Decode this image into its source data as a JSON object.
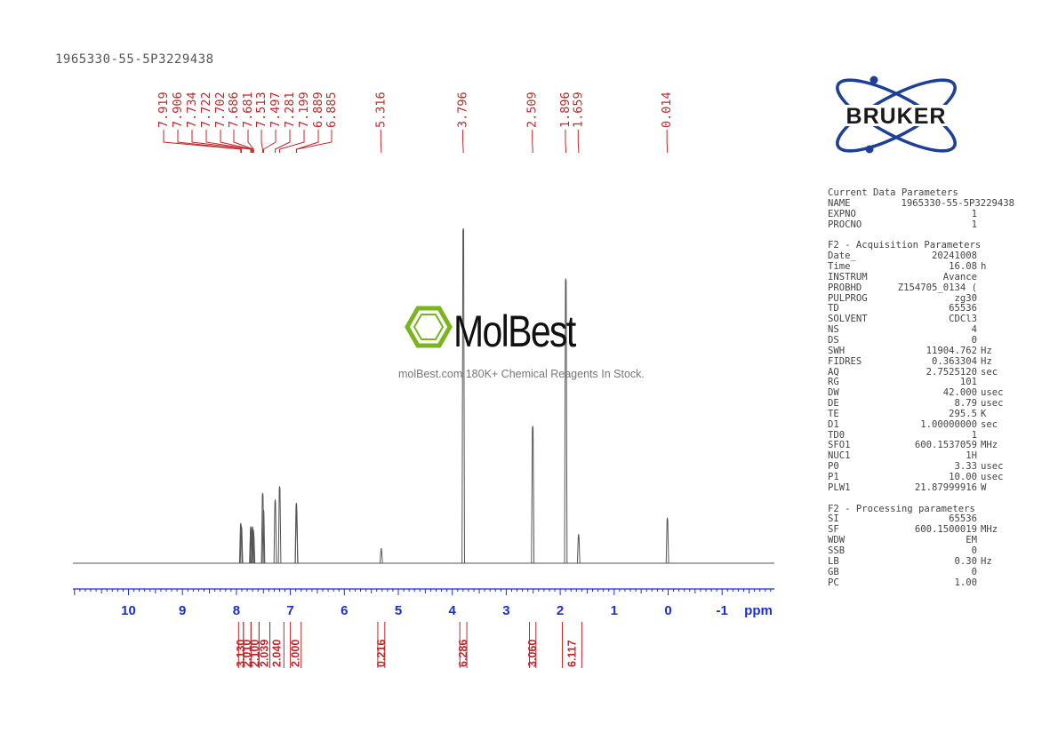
{
  "sample_id": "1965330-55-5P3229438",
  "watermark": {
    "brand": "MolBest",
    "tagline": "molBest.com,180K+ Chemical Reagents In Stock."
  },
  "logo": {
    "text": "BRUKER",
    "color": "#1e3f96"
  },
  "colors": {
    "peak_labels": "#c0272d",
    "axis": "#1a2fd0",
    "spectrum": "#555555",
    "brand_green": "#7ab51d"
  },
  "chart_data": {
    "type": "line",
    "title": "",
    "xlabel": "ppm",
    "ylabel": "",
    "xlim": [
      12.0,
      -2.0
    ],
    "x_direction": "reversed",
    "x_ticks": [
      10,
      9,
      8,
      7,
      6,
      5,
      4,
      3,
      2,
      1,
      0,
      -1
    ],
    "x_tick_labels": [
      "10",
      "9",
      "8",
      "7",
      "6",
      "5",
      "4",
      "3",
      "2",
      "1",
      "0",
      "-1"
    ],
    "peak_labels": [
      "7.919",
      "7.906",
      "7.734",
      "7.722",
      "7.702",
      "7.686",
      "7.681",
      "7.513",
      "7.497",
      "7.281",
      "7.199",
      "6.889",
      "6.885",
      "5.316",
      "3.796",
      "2.509",
      "1.896",
      "1.659",
      "0.014"
    ],
    "peaks": [
      {
        "ppm": 7.919,
        "height": 0.12
      },
      {
        "ppm": 7.906,
        "height": 0.11
      },
      {
        "ppm": 7.734,
        "height": 0.11
      },
      {
        "ppm": 7.722,
        "height": 0.1
      },
      {
        "ppm": 7.702,
        "height": 0.11
      },
      {
        "ppm": 7.686,
        "height": 0.1
      },
      {
        "ppm": 7.681,
        "height": 0.09
      },
      {
        "ppm": 7.513,
        "height": 0.21
      },
      {
        "ppm": 7.497,
        "height": 0.16
      },
      {
        "ppm": 7.281,
        "height": 0.19
      },
      {
        "ppm": 7.199,
        "height": 0.23
      },
      {
        "ppm": 6.889,
        "height": 0.18
      },
      {
        "ppm": 6.885,
        "height": 0.16
      },
      {
        "ppm": 5.316,
        "height": 0.045
      },
      {
        "ppm": 3.796,
        "height": 1.0
      },
      {
        "ppm": 2.509,
        "height": 0.41
      },
      {
        "ppm": 1.896,
        "height": 0.85
      },
      {
        "ppm": 1.659,
        "height": 0.087
      },
      {
        "ppm": 0.014,
        "height": 0.136
      }
    ],
    "integrals": [
      {
        "from": 7.96,
        "to": 7.87,
        "value": "3.130"
      },
      {
        "from": 7.87,
        "to": 7.73,
        "value": "2.010"
      },
      {
        "from": 7.73,
        "to": 7.58,
        "value": "2.100"
      },
      {
        "from": 7.58,
        "to": 7.38,
        "value": "2.039"
      },
      {
        "from": 7.38,
        "to": 7.12,
        "value": "2.040"
      },
      {
        "from": 7.0,
        "to": 6.8,
        "value": "2.000"
      },
      {
        "from": 5.38,
        "to": 5.25,
        "value": "0.216"
      },
      {
        "from": 3.86,
        "to": 3.73,
        "value": "6.286"
      },
      {
        "from": 2.57,
        "to": 2.45,
        "value": "3.060"
      },
      {
        "from": 1.96,
        "to": 1.6,
        "value": "6.117"
      }
    ]
  },
  "parameters": {
    "current": {
      "header": "Current Data Parameters",
      "rows": [
        {
          "key": "NAME",
          "value": "1965330-55-5P3229438",
          "unit": ""
        },
        {
          "key": "EXPNO",
          "value": "1",
          "unit": ""
        },
        {
          "key": "PROCNO",
          "value": "1",
          "unit": ""
        }
      ]
    },
    "acquisition": {
      "header": "F2 - Acquisition Parameters",
      "rows": [
        {
          "key": "Date_",
          "value": "20241008",
          "unit": ""
        },
        {
          "key": "Time",
          "value": "16.08",
          "unit": "h"
        },
        {
          "key": "INSTRUM",
          "value": "Avance",
          "unit": ""
        },
        {
          "key": "PROBHD",
          "value": "Z154705_0134 (",
          "unit": ""
        },
        {
          "key": "PULPROG",
          "value": "zg30",
          "unit": ""
        },
        {
          "key": "TD",
          "value": "65536",
          "unit": ""
        },
        {
          "key": "SOLVENT",
          "value": "CDCl3",
          "unit": ""
        },
        {
          "key": "NS",
          "value": "4",
          "unit": ""
        },
        {
          "key": "DS",
          "value": "0",
          "unit": ""
        },
        {
          "key": "SWH",
          "value": "11904.762",
          "unit": "Hz"
        },
        {
          "key": "FIDRES",
          "value": "0.363304",
          "unit": "Hz"
        },
        {
          "key": "AQ",
          "value": "2.7525120",
          "unit": "sec"
        },
        {
          "key": "RG",
          "value": "101",
          "unit": ""
        },
        {
          "key": "DW",
          "value": "42.000",
          "unit": "usec"
        },
        {
          "key": "DE",
          "value": "8.79",
          "unit": "usec"
        },
        {
          "key": "TE",
          "value": "295.5",
          "unit": "K"
        },
        {
          "key": "D1",
          "value": "1.00000000",
          "unit": "sec"
        },
        {
          "key": "TD0",
          "value": "1",
          "unit": ""
        },
        {
          "key": "SFO1",
          "value": "600.1537059",
          "unit": "MHz"
        },
        {
          "key": "NUC1",
          "value": "1H",
          "unit": ""
        },
        {
          "key": "P0",
          "value": "3.33",
          "unit": "usec"
        },
        {
          "key": "P1",
          "value": "10.00",
          "unit": "usec"
        },
        {
          "key": "PLW1",
          "value": "21.87999916",
          "unit": "W"
        }
      ]
    },
    "processing": {
      "header": "F2 - Processing parameters",
      "rows": [
        {
          "key": "SI",
          "value": "65536",
          "unit": ""
        },
        {
          "key": "SF",
          "value": "600.1500019",
          "unit": "MHz"
        },
        {
          "key": "WDW",
          "value": "EM",
          "unit": ""
        },
        {
          "key": "SSB",
          "value": "0",
          "unit": ""
        },
        {
          "key": "LB",
          "value": "0.30",
          "unit": "Hz"
        },
        {
          "key": "GB",
          "value": "0",
          "unit": ""
        },
        {
          "key": "PC",
          "value": "1.00",
          "unit": ""
        }
      ]
    }
  }
}
